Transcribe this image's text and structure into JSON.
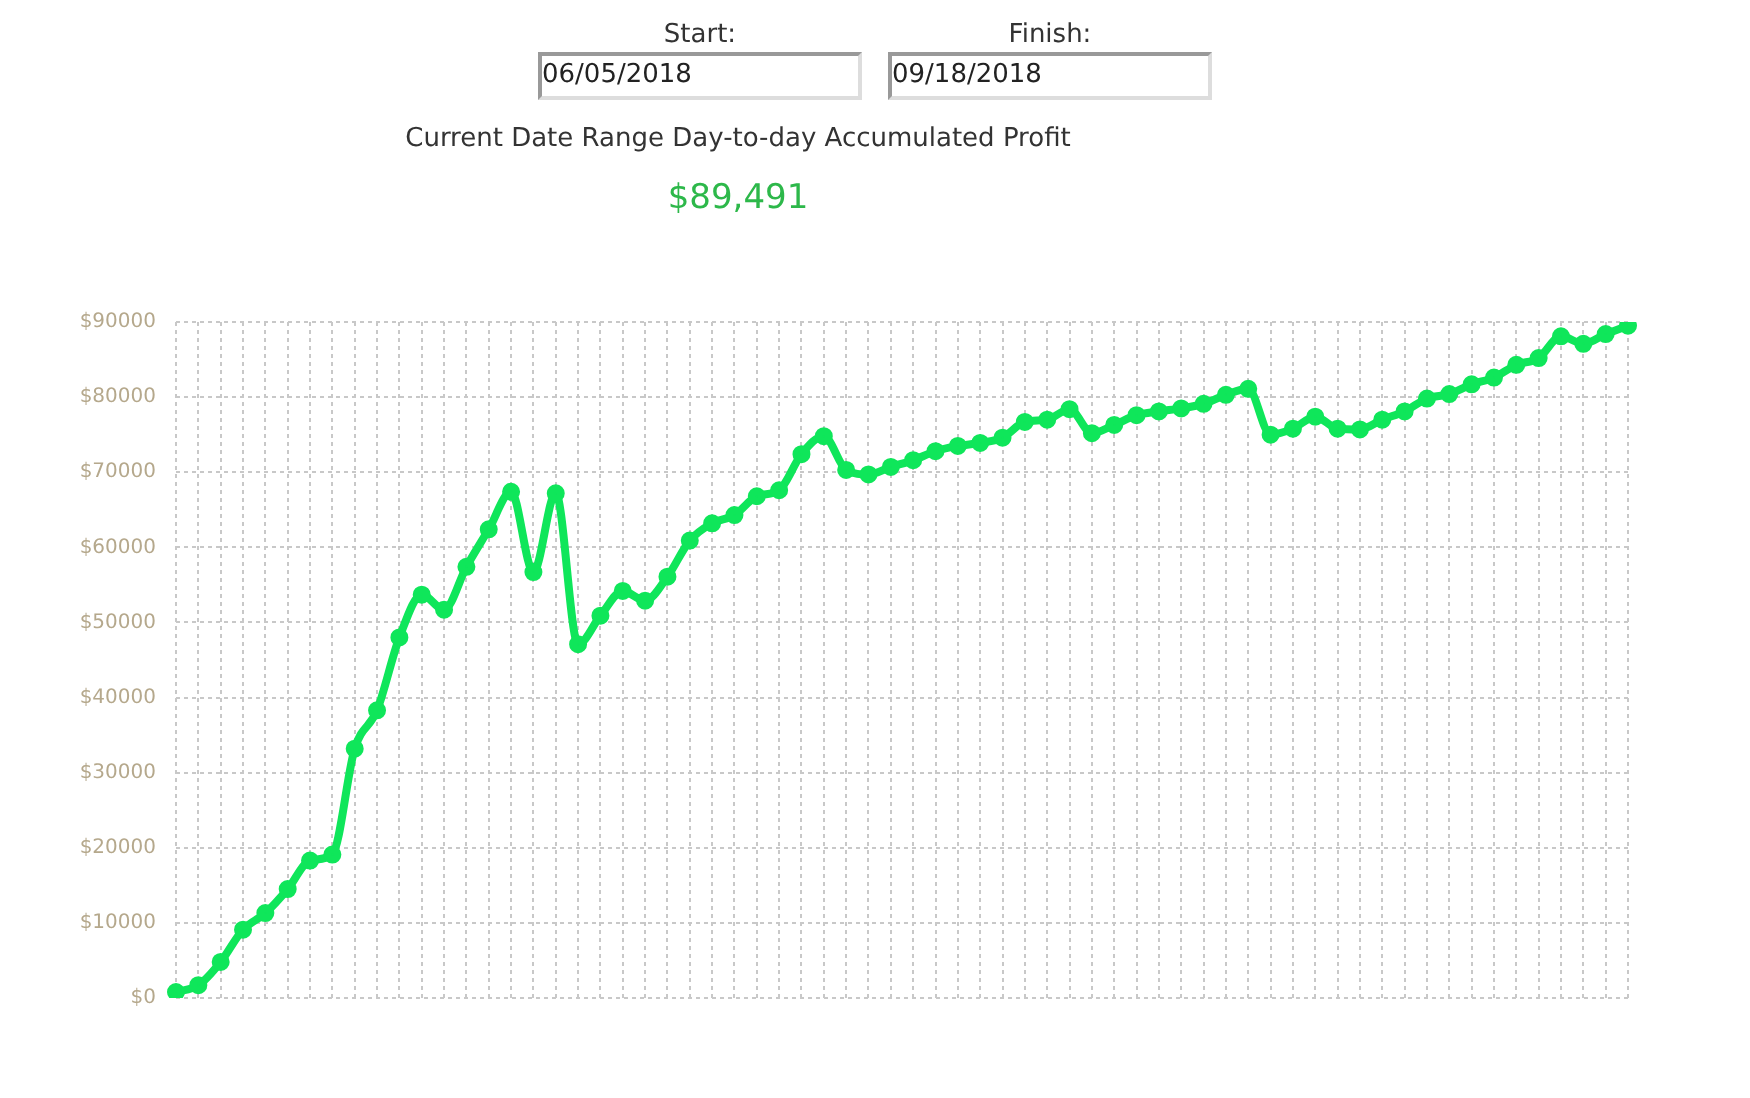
{
  "chart_data": {
    "type": "line",
    "title": "Current Date Range Day-to-day Accumulated Profit",
    "subtitle": "$89,491",
    "annotations": [
      "Start:",
      "06/05/2018",
      "Finish:",
      "09/18/2018"
    ],
    "categories": [
      null,
      null,
      null,
      null,
      null,
      null,
      null,
      null,
      null,
      null,
      null,
      null,
      null,
      null,
      null,
      null,
      null,
      null,
      null,
      null,
      null,
      null,
      null,
      null,
      null,
      null,
      null,
      null,
      null,
      null,
      null,
      null,
      null,
      null,
      null,
      null,
      null,
      null,
      null,
      null,
      null,
      null,
      null,
      null,
      null,
      null,
      null,
      null,
      null,
      null,
      null,
      null,
      null,
      null,
      null,
      null,
      null,
      null,
      null,
      null,
      null,
      null,
      null,
      null,
      null,
      null
    ],
    "series": [
      {
        "color": "#0fe65a",
        "values": [
          800,
          1700,
          4800,
          9100,
          11300,
          14500,
          18300,
          19100,
          33200,
          38300,
          48000,
          53700,
          51700,
          57400,
          62400,
          67400,
          56700,
          67200,
          47100,
          50900,
          54200,
          52900,
          56100,
          60900,
          63200,
          64300,
          66800,
          67600,
          72400,
          74800,
          70300,
          69700,
          70700,
          71600,
          72800,
          73500,
          73900,
          74600,
          76700,
          77000,
          78400,
          75200,
          76300,
          77600,
          78100,
          78500,
          79100,
          80300,
          81100,
          75000,
          75800,
          77400,
          75800,
          75700,
          77000,
          78100,
          79800,
          80400,
          81700,
          82600,
          84300,
          85200,
          88100,
          87100,
          88400,
          89500
        ]
      }
    ],
    "ylim": [
      0,
      90000
    ],
    "yticks": [
      {
        "value": 0,
        "label": "$0"
      },
      {
        "value": 10000,
        "label": "$10000"
      },
      {
        "value": 20000,
        "label": "$20000"
      },
      {
        "value": 30000,
        "label": "$30000"
      },
      {
        "value": 40000,
        "label": "$40000"
      },
      {
        "value": 50000,
        "label": "$50000"
      },
      {
        "value": 60000,
        "label": "$60000"
      },
      {
        "value": 70000,
        "label": "$70000"
      },
      {
        "value": 80000,
        "label": "$80000"
      },
      {
        "value": 90000,
        "label": "$90000"
      }
    ],
    "grid": true,
    "legend": false,
    "tick_labels": "y",
    "marker": "circle",
    "line_style": "solid"
  }
}
